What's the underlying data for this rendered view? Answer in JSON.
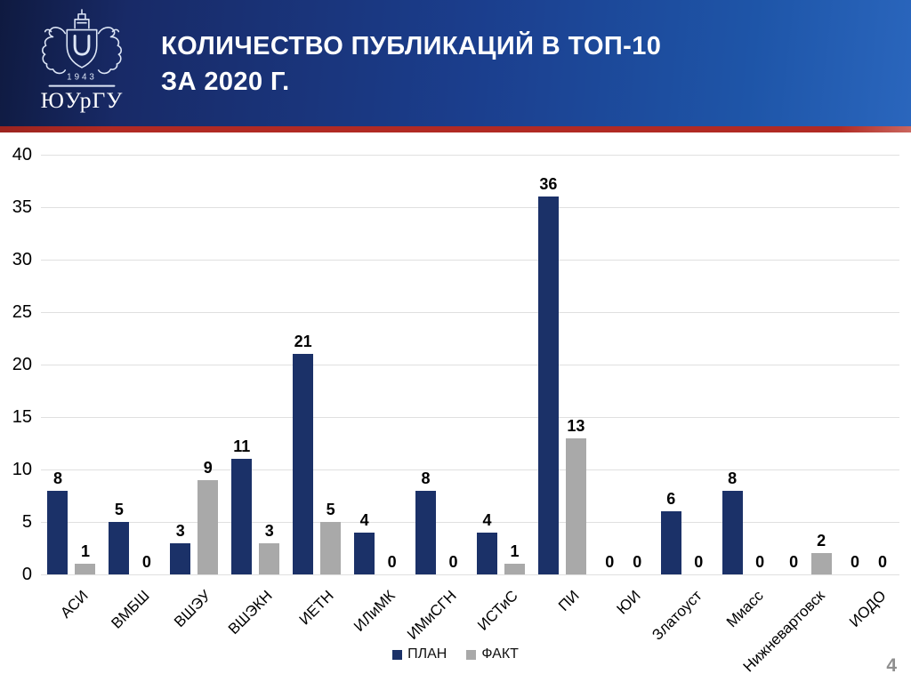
{
  "slide": {
    "title_lines": [
      "КОЛИЧЕСТВО ПУБЛИКАЦИЙ В ТОП-10",
      "ЗА 2020 Г."
    ],
    "page_number": "4",
    "logo": {
      "year": "1943",
      "name": "ЮУрГУ"
    }
  },
  "chart_data": {
    "type": "bar",
    "title": "КОЛИЧЕСТВО ПУБЛИКАЦИЙ В ТОП-10 ЗА 2020 Г.",
    "xlabel": "",
    "ylabel": "",
    "categories": [
      "АСИ",
      "ВМБШ",
      "ВШЭУ",
      "ВШЭКН",
      "ИЕТН",
      "ИЛиМК",
      "ИМиСГН",
      "ИСТиС",
      "ПИ",
      "ЮИ",
      "Златоуст",
      "Миасс",
      "Нижневартовск",
      "ИОДО"
    ],
    "series": [
      {
        "name": "ПЛАН",
        "color": "#1b3168",
        "values": [
          8,
          5,
          3,
          11,
          21,
          4,
          8,
          4,
          36,
          0,
          6,
          8,
          0,
          0
        ]
      },
      {
        "name": "ФАКТ",
        "color": "#a9a9a9",
        "values": [
          1,
          0,
          9,
          3,
          5,
          0,
          0,
          1,
          13,
          0,
          0,
          0,
          2,
          0
        ]
      }
    ],
    "ylim": [
      0,
      40
    ],
    "yticks": [
      0,
      5,
      10,
      15,
      20,
      25,
      30,
      35,
      40
    ],
    "grid": true,
    "data_labels": true,
    "legend_position": "bottom"
  },
  "colors": {
    "bar_plan": "#1b3168",
    "bar_fact": "#a9a9a9",
    "header_dark": "#0f1a40",
    "header_light": "#1e55a8",
    "divider_red": "#b12a24",
    "gridline": "#e0e0e0"
  }
}
